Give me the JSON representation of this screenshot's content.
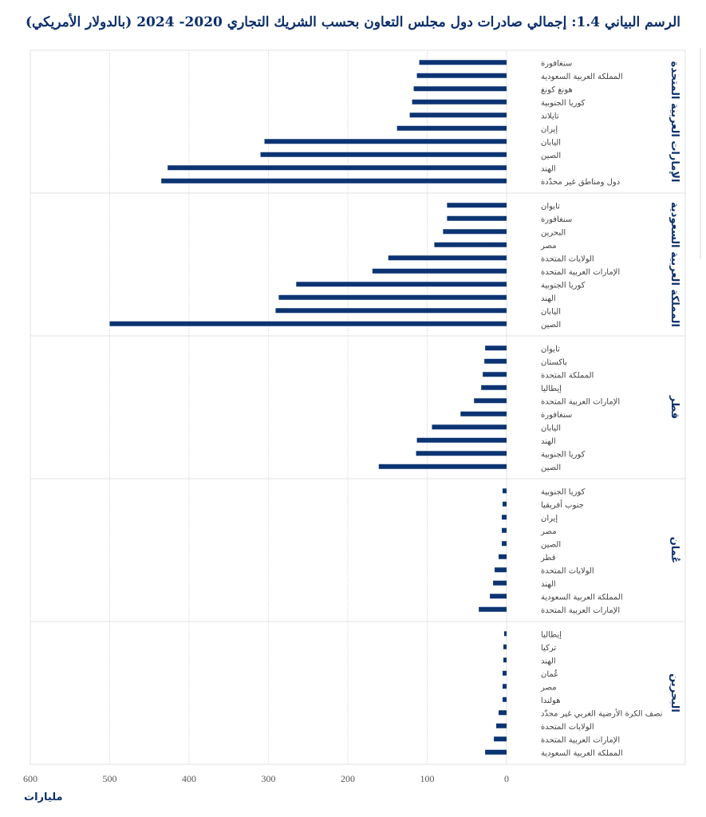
{
  "chart_data": {
    "type": "bar",
    "orientation": "horizontal",
    "title": "الرسم البياني 1.4: إجمالي صادرات دول مجلس التعاون بحسب الشريك التجاري 2020- 2024 (بالدولار الأمريكي)",
    "xlabel": "مليارات",
    "ylabel": "",
    "xlim": [
      0,
      600
    ],
    "x_reversed": true,
    "x_ticks": [
      0,
      100,
      200,
      300,
      400,
      500,
      600
    ],
    "grid": true,
    "legend": "none",
    "bar_color": "#0c3472",
    "groups": [
      {
        "name": "الإمارات العربية المتحدة",
        "categories": [
          "سنغافورة",
          "المملكة العربية السعودية",
          "هونغ كونغ",
          "كوريا الجنوبية",
          "تايلاند",
          "إيران",
          "اليابان",
          "الصين",
          "الهند",
          "دول ومناطق غير محدّدة"
        ],
        "values": [
          110,
          113,
          117,
          119,
          122,
          138,
          305,
          310,
          427,
          435
        ]
      },
      {
        "name": "المملكة العربية السعودية",
        "categories": [
          "تايوان",
          "سنغافورة",
          "البحرين",
          "مصر",
          "الولايات المتحدة",
          "الإمارات العربية المتحدة",
          "كوريا الجنوبية",
          "الهند",
          "اليابان",
          "الصين"
        ],
        "values": [
          75,
          75,
          80,
          91,
          149,
          169,
          265,
          287,
          291,
          500
        ]
      },
      {
        "name": "قطر",
        "categories": [
          "تايوان",
          "باكستان",
          "المملكة المتحدة",
          "إيطاليا",
          "الإمارات العربية المتحدة",
          "سنغافورة",
          "اليابان",
          "الهند",
          "كوريا الجنوبية",
          "الصين"
        ],
        "values": [
          27,
          28,
          30,
          32,
          41,
          58,
          94,
          113,
          114,
          161
        ]
      },
      {
        "name": "عُمان",
        "categories": [
          "كوريا الجنوبية",
          "جنوب أفريقيا",
          "إيران",
          "مصر",
          "الصين",
          "قطر",
          "الولايات المتحدة",
          "الهند",
          "المملكة العربية السعودية",
          "الإمارات العربية المتحدة"
        ],
        "values": [
          5,
          5,
          6,
          6,
          6,
          10,
          15,
          17,
          21,
          35
        ]
      },
      {
        "name": "البحرين",
        "categories": [
          "إيطاليا",
          "تركيا",
          "الهند",
          "عُمان",
          "مصر",
          "هولندا",
          "نصف الكرة الأرضية الغربي غير محدّد",
          "الولايات المتحدة",
          "الإمارات العربية المتحدة",
          "المملكة العربية السعودية"
        ],
        "values": [
          3,
          4,
          4,
          5,
          5,
          5,
          10,
          13,
          16,
          27
        ]
      }
    ]
  }
}
